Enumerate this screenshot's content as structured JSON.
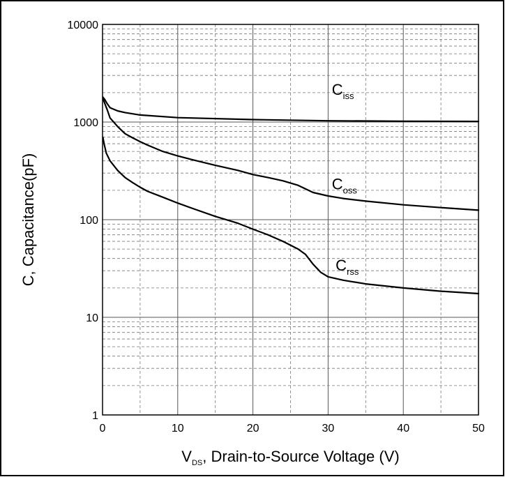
{
  "chart_data": {
    "type": "line",
    "xlabel": {
      "main": "V",
      "sub": "DS",
      "rest": ", Drain-to-Source Voltage (V)"
    },
    "ylabel": "C, Capacitance(pF)",
    "xlim": [
      0,
      50
    ],
    "ylim": [
      1,
      10000
    ],
    "yscale": "log",
    "grid": true,
    "x_ticks": [
      0,
      10,
      20,
      30,
      40,
      50
    ],
    "x_tick_labels": [
      "0",
      "10",
      "20",
      "30",
      "40",
      "50"
    ],
    "y_ticks": [
      1,
      10,
      100,
      1000,
      10000
    ],
    "y_tick_labels": [
      "1",
      "10",
      "100",
      "1000",
      "10000"
    ],
    "series": [
      {
        "name": {
          "main": "C",
          "sub": "iss"
        },
        "label_at": [
          30.5,
          1900
        ],
        "points": [
          [
            0.05,
            1800
          ],
          [
            0.3,
            1700
          ],
          [
            0.6,
            1550
          ],
          [
            1,
            1400
          ],
          [
            2,
            1300
          ],
          [
            3,
            1250
          ],
          [
            5,
            1180
          ],
          [
            10,
            1110
          ],
          [
            20,
            1060
          ],
          [
            30,
            1030
          ],
          [
            40,
            1020
          ],
          [
            50,
            1015
          ]
        ]
      },
      {
        "name": {
          "main": "C",
          "sub": "oss"
        },
        "label_at": [
          30.5,
          205
        ],
        "points": [
          [
            0.05,
            1750
          ],
          [
            0.3,
            1550
          ],
          [
            0.6,
            1350
          ],
          [
            1,
            1100
          ],
          [
            2,
            900
          ],
          [
            3,
            760
          ],
          [
            4,
            690
          ],
          [
            5,
            630
          ],
          [
            6,
            580
          ],
          [
            8,
            500
          ],
          [
            10,
            450
          ],
          [
            12,
            410
          ],
          [
            15,
            360
          ],
          [
            18,
            320
          ],
          [
            20,
            290
          ],
          [
            22,
            270
          ],
          [
            24,
            250
          ],
          [
            26,
            225
          ],
          [
            28,
            190
          ],
          [
            30,
            175
          ],
          [
            32,
            165
          ],
          [
            35,
            155
          ],
          [
            40,
            142
          ],
          [
            45,
            133
          ],
          [
            50,
            125
          ]
        ]
      },
      {
        "name": {
          "main": "C",
          "sub": "rss"
        },
        "label_at": [
          31,
          30
        ],
        "points": [
          [
            0.05,
            700
          ],
          [
            0.2,
            600
          ],
          [
            0.5,
            480
          ],
          [
            1,
            400
          ],
          [
            2,
            320
          ],
          [
            3,
            270
          ],
          [
            4,
            240
          ],
          [
            5,
            215
          ],
          [
            6,
            195
          ],
          [
            8,
            170
          ],
          [
            10,
            148
          ],
          [
            12,
            130
          ],
          [
            15,
            108
          ],
          [
            18,
            92
          ],
          [
            20,
            80
          ],
          [
            22,
            70
          ],
          [
            24,
            60
          ],
          [
            26,
            50
          ],
          [
            27,
            44
          ],
          [
            28,
            35
          ],
          [
            29,
            29
          ],
          [
            30,
            26
          ],
          [
            32,
            24
          ],
          [
            35,
            22
          ],
          [
            40,
            20
          ],
          [
            45,
            18.5
          ],
          [
            50,
            17.5
          ]
        ]
      }
    ]
  }
}
